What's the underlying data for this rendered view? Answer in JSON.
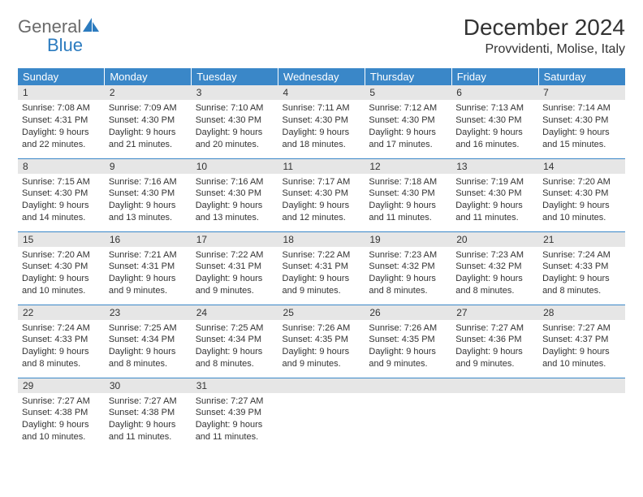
{
  "logo": {
    "text1": "General",
    "text2": "Blue"
  },
  "title": "December 2024",
  "location": "Provvidenti, Molise, Italy",
  "colors": {
    "header_bg": "#3a87c8",
    "header_text": "#ffffff",
    "daynum_bg": "#e6e6e6",
    "border": "#3a87c8",
    "logo_gray": "#6a6a6a",
    "logo_blue": "#2b7bbf",
    "body_text": "#333333"
  },
  "weekdays": [
    "Sunday",
    "Monday",
    "Tuesday",
    "Wednesday",
    "Thursday",
    "Friday",
    "Saturday"
  ],
  "days": [
    {
      "n": "1",
      "sr": "Sunrise: 7:08 AM",
      "ss": "Sunset: 4:31 PM",
      "d1": "Daylight: 9 hours",
      "d2": "and 22 minutes."
    },
    {
      "n": "2",
      "sr": "Sunrise: 7:09 AM",
      "ss": "Sunset: 4:30 PM",
      "d1": "Daylight: 9 hours",
      "d2": "and 21 minutes."
    },
    {
      "n": "3",
      "sr": "Sunrise: 7:10 AM",
      "ss": "Sunset: 4:30 PM",
      "d1": "Daylight: 9 hours",
      "d2": "and 20 minutes."
    },
    {
      "n": "4",
      "sr": "Sunrise: 7:11 AM",
      "ss": "Sunset: 4:30 PM",
      "d1": "Daylight: 9 hours",
      "d2": "and 18 minutes."
    },
    {
      "n": "5",
      "sr": "Sunrise: 7:12 AM",
      "ss": "Sunset: 4:30 PM",
      "d1": "Daylight: 9 hours",
      "d2": "and 17 minutes."
    },
    {
      "n": "6",
      "sr": "Sunrise: 7:13 AM",
      "ss": "Sunset: 4:30 PM",
      "d1": "Daylight: 9 hours",
      "d2": "and 16 minutes."
    },
    {
      "n": "7",
      "sr": "Sunrise: 7:14 AM",
      "ss": "Sunset: 4:30 PM",
      "d1": "Daylight: 9 hours",
      "d2": "and 15 minutes."
    },
    {
      "n": "8",
      "sr": "Sunrise: 7:15 AM",
      "ss": "Sunset: 4:30 PM",
      "d1": "Daylight: 9 hours",
      "d2": "and 14 minutes."
    },
    {
      "n": "9",
      "sr": "Sunrise: 7:16 AM",
      "ss": "Sunset: 4:30 PM",
      "d1": "Daylight: 9 hours",
      "d2": "and 13 minutes."
    },
    {
      "n": "10",
      "sr": "Sunrise: 7:16 AM",
      "ss": "Sunset: 4:30 PM",
      "d1": "Daylight: 9 hours",
      "d2": "and 13 minutes."
    },
    {
      "n": "11",
      "sr": "Sunrise: 7:17 AM",
      "ss": "Sunset: 4:30 PM",
      "d1": "Daylight: 9 hours",
      "d2": "and 12 minutes."
    },
    {
      "n": "12",
      "sr": "Sunrise: 7:18 AM",
      "ss": "Sunset: 4:30 PM",
      "d1": "Daylight: 9 hours",
      "d2": "and 11 minutes."
    },
    {
      "n": "13",
      "sr": "Sunrise: 7:19 AM",
      "ss": "Sunset: 4:30 PM",
      "d1": "Daylight: 9 hours",
      "d2": "and 11 minutes."
    },
    {
      "n": "14",
      "sr": "Sunrise: 7:20 AM",
      "ss": "Sunset: 4:30 PM",
      "d1": "Daylight: 9 hours",
      "d2": "and 10 minutes."
    },
    {
      "n": "15",
      "sr": "Sunrise: 7:20 AM",
      "ss": "Sunset: 4:30 PM",
      "d1": "Daylight: 9 hours",
      "d2": "and 10 minutes."
    },
    {
      "n": "16",
      "sr": "Sunrise: 7:21 AM",
      "ss": "Sunset: 4:31 PM",
      "d1": "Daylight: 9 hours",
      "d2": "and 9 minutes."
    },
    {
      "n": "17",
      "sr": "Sunrise: 7:22 AM",
      "ss": "Sunset: 4:31 PM",
      "d1": "Daylight: 9 hours",
      "d2": "and 9 minutes."
    },
    {
      "n": "18",
      "sr": "Sunrise: 7:22 AM",
      "ss": "Sunset: 4:31 PM",
      "d1": "Daylight: 9 hours",
      "d2": "and 9 minutes."
    },
    {
      "n": "19",
      "sr": "Sunrise: 7:23 AM",
      "ss": "Sunset: 4:32 PM",
      "d1": "Daylight: 9 hours",
      "d2": "and 8 minutes."
    },
    {
      "n": "20",
      "sr": "Sunrise: 7:23 AM",
      "ss": "Sunset: 4:32 PM",
      "d1": "Daylight: 9 hours",
      "d2": "and 8 minutes."
    },
    {
      "n": "21",
      "sr": "Sunrise: 7:24 AM",
      "ss": "Sunset: 4:33 PM",
      "d1": "Daylight: 9 hours",
      "d2": "and 8 minutes."
    },
    {
      "n": "22",
      "sr": "Sunrise: 7:24 AM",
      "ss": "Sunset: 4:33 PM",
      "d1": "Daylight: 9 hours",
      "d2": "and 8 minutes."
    },
    {
      "n": "23",
      "sr": "Sunrise: 7:25 AM",
      "ss": "Sunset: 4:34 PM",
      "d1": "Daylight: 9 hours",
      "d2": "and 8 minutes."
    },
    {
      "n": "24",
      "sr": "Sunrise: 7:25 AM",
      "ss": "Sunset: 4:34 PM",
      "d1": "Daylight: 9 hours",
      "d2": "and 8 minutes."
    },
    {
      "n": "25",
      "sr": "Sunrise: 7:26 AM",
      "ss": "Sunset: 4:35 PM",
      "d1": "Daylight: 9 hours",
      "d2": "and 9 minutes."
    },
    {
      "n": "26",
      "sr": "Sunrise: 7:26 AM",
      "ss": "Sunset: 4:35 PM",
      "d1": "Daylight: 9 hours",
      "d2": "and 9 minutes."
    },
    {
      "n": "27",
      "sr": "Sunrise: 7:27 AM",
      "ss": "Sunset: 4:36 PM",
      "d1": "Daylight: 9 hours",
      "d2": "and 9 minutes."
    },
    {
      "n": "28",
      "sr": "Sunrise: 7:27 AM",
      "ss": "Sunset: 4:37 PM",
      "d1": "Daylight: 9 hours",
      "d2": "and 10 minutes."
    },
    {
      "n": "29",
      "sr": "Sunrise: 7:27 AM",
      "ss": "Sunset: 4:38 PM",
      "d1": "Daylight: 9 hours",
      "d2": "and 10 minutes."
    },
    {
      "n": "30",
      "sr": "Sunrise: 7:27 AM",
      "ss": "Sunset: 4:38 PM",
      "d1": "Daylight: 9 hours",
      "d2": "and 11 minutes."
    },
    {
      "n": "31",
      "sr": "Sunrise: 7:27 AM",
      "ss": "Sunset: 4:39 PM",
      "d1": "Daylight: 9 hours",
      "d2": "and 11 minutes."
    }
  ]
}
